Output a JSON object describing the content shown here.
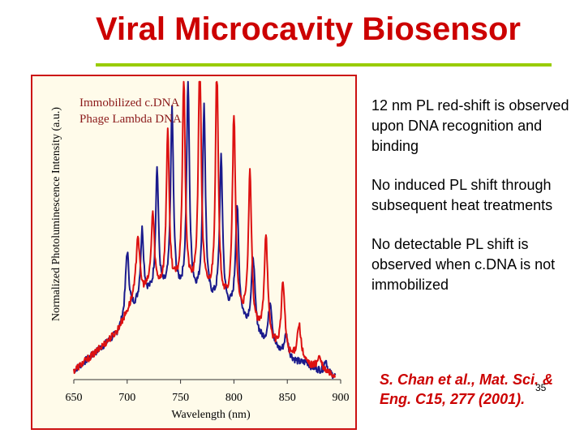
{
  "slide": {
    "title": "Viral Microcavity Biosensor",
    "bullets": [
      "12 nm PL red-shift is observed upon DNA recognition and binding",
      "No induced PL shift through subsequent heat treatments",
      "No detectable PL shift is observed when c.DNA is not immobilized"
    ],
    "citation": "S. Chan et al., Mat. Sci. & Eng. C15, 277 (2001).",
    "page_number": "35"
  },
  "colors": {
    "title": "#cc0000",
    "rule": "#99cc00",
    "frame": "#cc1111",
    "plot_bg": "#fffbea",
    "series_blue": "#1a1a8c",
    "series_red": "#dd1111"
  },
  "chart_data": {
    "type": "line",
    "title": "",
    "xlabel": "Wavelength (nm)",
    "ylabel": "Normalized Photoluminescence Intensity (a.u.)",
    "xlim": [
      650,
      900
    ],
    "ylim": [
      0,
      1
    ],
    "xticks": [
      650,
      700,
      750,
      800,
      850,
      900
    ],
    "legend": [
      "Immobilized c.DNA",
      "Phage Lambda DNA"
    ],
    "series": [
      {
        "name": "Immobilized c.DNA",
        "color": "#1a1a8c",
        "baseline": [
          [
            650,
            0.03
          ],
          [
            670,
            0.09
          ],
          [
            690,
            0.15
          ],
          [
            705,
            0.23
          ],
          [
            720,
            0.28
          ],
          [
            745,
            0.29
          ],
          [
            770,
            0.27
          ],
          [
            800,
            0.22
          ],
          [
            825,
            0.13
          ],
          [
            850,
            0.07
          ],
          [
            880,
            0.03
          ],
          [
            895,
            0.01
          ]
        ],
        "peaks": [
          {
            "x": 700,
            "y": 0.35,
            "w": 4
          },
          {
            "x": 714,
            "y": 0.4,
            "w": 3.5
          },
          {
            "x": 728,
            "y": 0.6,
            "w": 3.2
          },
          {
            "x": 742,
            "y": 0.8,
            "w": 3.2
          },
          {
            "x": 757,
            "y": 0.89,
            "w": 3.2
          },
          {
            "x": 772,
            "y": 0.82,
            "w": 3.2
          },
          {
            "x": 788,
            "y": 0.65,
            "w": 3.4
          },
          {
            "x": 803,
            "y": 0.5,
            "w": 3.6
          },
          {
            "x": 818,
            "y": 0.35,
            "w": 4
          },
          {
            "x": 834,
            "y": 0.22,
            "w": 4
          },
          {
            "x": 849,
            "y": 0.12,
            "w": 4.5
          },
          {
            "x": 868,
            "y": 0.04,
            "w": 5
          },
          {
            "x": 886,
            "y": 0.06,
            "w": 3
          }
        ]
      },
      {
        "name": "Phage Lambda DNA",
        "color": "#dd1111",
        "baseline": [
          [
            650,
            0.03
          ],
          [
            670,
            0.09
          ],
          [
            690,
            0.16
          ],
          [
            705,
            0.26
          ],
          [
            720,
            0.3
          ],
          [
            745,
            0.31
          ],
          [
            770,
            0.29
          ],
          [
            800,
            0.23
          ],
          [
            825,
            0.14
          ],
          [
            850,
            0.07
          ],
          [
            880,
            0.03
          ],
          [
            895,
            0.01
          ]
        ],
        "peaks": [
          {
            "x": 710,
            "y": 0.38,
            "w": 4
          },
          {
            "x": 724,
            "y": 0.44,
            "w": 3.5
          },
          {
            "x": 738,
            "y": 0.72,
            "w": 3.2
          },
          {
            "x": 753,
            "y": 0.9,
            "w": 3.2
          },
          {
            "x": 768,
            "y": 1.0,
            "w": 3.2
          },
          {
            "x": 784,
            "y": 0.95,
            "w": 3.2
          },
          {
            "x": 800,
            "y": 0.8,
            "w": 3.4
          },
          {
            "x": 815,
            "y": 0.62,
            "w": 3.6
          },
          {
            "x": 830,
            "y": 0.44,
            "w": 3.8
          },
          {
            "x": 846,
            "y": 0.29,
            "w": 4
          },
          {
            "x": 861,
            "y": 0.16,
            "w": 4.5
          },
          {
            "x": 880,
            "y": 0.06,
            "w": 5
          }
        ]
      }
    ]
  }
}
